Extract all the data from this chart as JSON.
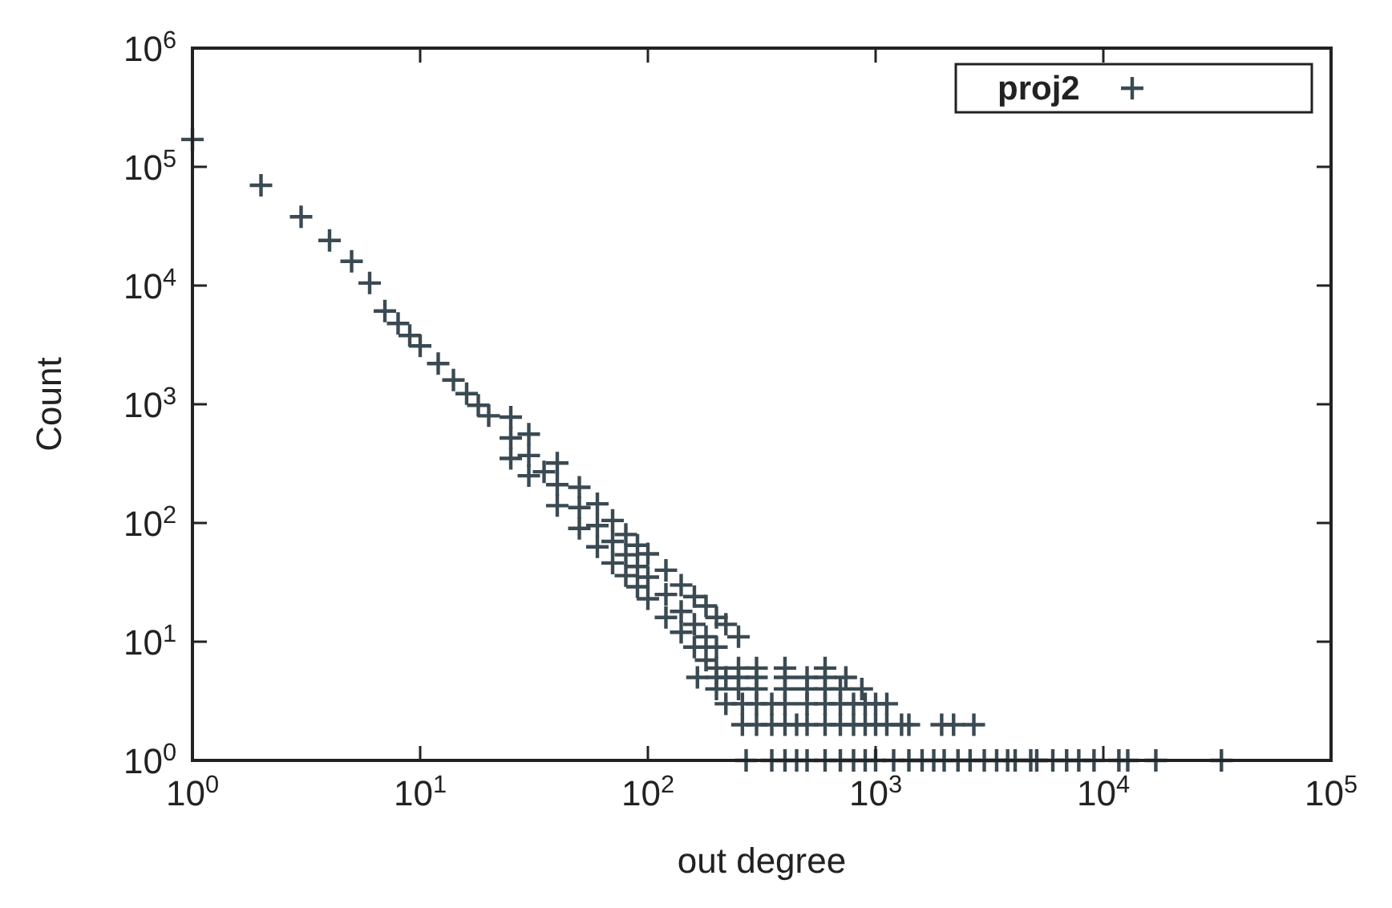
{
  "chart_data": {
    "type": "scatter",
    "xlabel": "out degree",
    "ylabel": "Count",
    "log": "xy",
    "marker": "cross",
    "legend": "top right",
    "grid": false,
    "xlim": [
      1,
      100000
    ],
    "ylim": [
      1,
      1000000
    ],
    "xticks": [
      {
        "value": 1,
        "label": "10$^{0}$"
      },
      {
        "value": 10,
        "label": "10$^{1}$"
      },
      {
        "value": 100,
        "label": "10$^{2}$"
      },
      {
        "value": 1000,
        "label": "10$^{3}$"
      },
      {
        "value": 10000,
        "label": "10$^{4}$"
      },
      {
        "value": 100000,
        "label": "10$^{5}$"
      }
    ],
    "yticks": [
      {
        "value": 1,
        "label": "10$^{0}$"
      },
      {
        "value": 10,
        "label": "10$^{1}$"
      },
      {
        "value": 100,
        "label": "10$^{2}$"
      },
      {
        "value": 1000,
        "label": "10$^{3}$"
      },
      {
        "value": 10000,
        "label": "10$^{4}$"
      },
      {
        "value": 100000,
        "label": "10$^{5}$"
      },
      {
        "value": 1000000,
        "label": "10$^{6}$"
      }
    ],
    "series": [
      {
        "name": "proj2",
        "color": "#3b4a52",
        "x": [
          1,
          2,
          3,
          4,
          5,
          6,
          7,
          8,
          9,
          10,
          12,
          14,
          16,
          18,
          20,
          25,
          30,
          35,
          40,
          50,
          60,
          70,
          80,
          90,
          100,
          120,
          140,
          160,
          180,
          200,
          250,
          300,
          25,
          30,
          40,
          50,
          60,
          70,
          80,
          90,
          100,
          120,
          140,
          160,
          180,
          200,
          220,
          250,
          25,
          30,
          40,
          50,
          60,
          70,
          80,
          90,
          100,
          120,
          140,
          160,
          180,
          200,
          220,
          250,
          270,
          350,
          400,
          450,
          500,
          600,
          700,
          800,
          900,
          1000,
          1200,
          1400,
          1600,
          1800,
          2000,
          2300,
          2600,
          3000,
          3400,
          3800,
          4100,
          4800,
          5100,
          6000,
          6900,
          7800,
          9100,
          11700,
          12800,
          17000,
          33000,
          260,
          300,
          350,
          400,
          450,
          500,
          600,
          700,
          800,
          900,
          1000,
          1120,
          1300,
          1400,
          1950,
          2200,
          2700,
          220,
          260,
          300,
          350,
          400,
          500,
          600,
          700,
          800,
          900,
          1000,
          1120,
          200,
          400,
          500,
          600,
          700,
          870,
          165,
          200,
          250,
          300,
          400,
          500,
          600,
          740,
          300,
          400,
          600
        ],
        "values": [
          170000,
          70000,
          38000,
          24000,
          16000,
          10500,
          6100,
          4800,
          3800,
          3100,
          2200,
          1600,
          1230,
          980,
          800,
          520,
          370,
          270,
          210,
          135,
          95,
          70,
          54,
          43,
          35,
          25,
          18,
          14,
          11,
          9,
          6,
          4,
          780,
          560,
          320,
          200,
          145,
          105,
          80,
          65,
          55,
          40,
          30,
          24,
          20,
          16,
          14,
          11,
          350,
          250,
          140,
          90,
          63,
          46,
          36,
          29,
          23,
          16,
          12,
          9,
          7,
          6,
          5,
          4,
          1,
          1,
          1,
          1,
          1,
          1,
          1,
          1,
          1,
          1,
          1,
          1,
          1,
          1,
          1,
          1,
          1,
          1,
          1,
          1,
          1,
          1,
          1,
          1,
          1,
          1,
          1,
          1,
          1,
          1,
          1,
          2,
          2,
          2,
          2,
          2,
          2,
          2,
          2,
          2,
          2,
          2,
          2,
          2,
          2,
          2,
          2,
          2,
          3,
          3,
          3,
          3,
          3,
          3,
          3,
          3,
          3,
          3,
          3,
          3,
          4,
          4,
          4,
          4,
          4,
          4,
          5,
          5,
          5,
          5,
          5,
          5,
          5,
          5,
          6,
          6,
          6
        ]
      }
    ]
  }
}
